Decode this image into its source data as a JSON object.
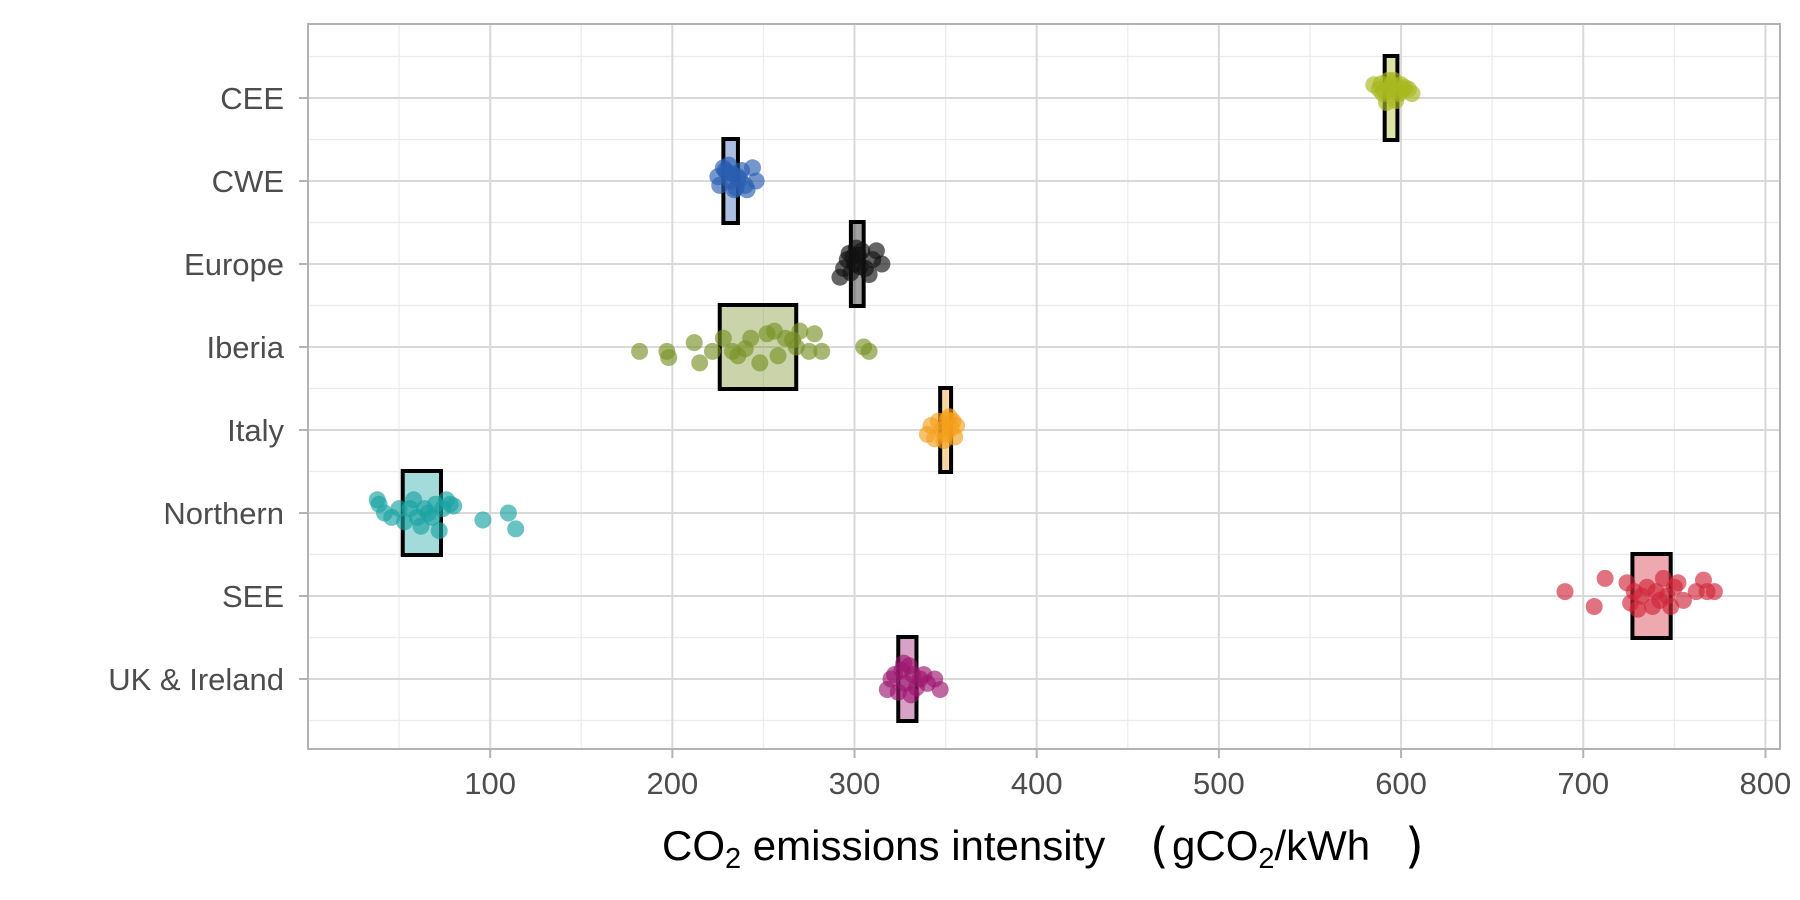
{
  "chart_data": {
    "type": "scatter",
    "subtype": "jitter points with mean boxes",
    "title": "",
    "xlabel": {
      "prefix": "CO",
      "sub1": "2",
      "middle": " emissions intensity ",
      "unit_prefix": "gCO",
      "sub2": "2",
      "unit_suffix": "/kWh",
      "open_paren": "(",
      "close_paren": ")"
    },
    "ylabel": "",
    "xlim": [
      0,
      808
    ],
    "xticks": [
      100,
      200,
      300,
      400,
      500,
      600,
      700,
      800
    ],
    "xtick_labels": [
      "100",
      "200",
      "300",
      "400",
      "500",
      "600",
      "700",
      "800"
    ],
    "categories": [
      "CEE",
      "CWE",
      "Europe",
      "Iberia",
      "Italy",
      "Northern",
      "SEE",
      "UK & Ireland"
    ],
    "grid": true,
    "legend": "none",
    "series": [
      {
        "name": "CEE",
        "color": "#a8b91f",
        "box": [
          591,
          598
        ],
        "points": [
          [
            585,
            0.15
          ],
          [
            588,
            0.1
          ],
          [
            590,
            0.05
          ],
          [
            592,
            -0.05
          ],
          [
            594,
            0.12
          ],
          [
            596,
            0.2
          ],
          [
            598,
            0.08
          ],
          [
            600,
            0.15
          ],
          [
            602,
            0.12
          ],
          [
            606,
            0.05
          ],
          [
            593,
            0.2
          ],
          [
            597,
            -0.03
          ],
          [
            599,
            0.05
          ],
          [
            601,
            0.1
          ],
          [
            595,
            0.15
          ],
          [
            589,
            0.16
          ],
          [
            604,
            0.1
          ],
          [
            591,
            0.08
          ]
        ]
      },
      {
        "name": "CWE",
        "color": "#2a5db0",
        "box": [
          228,
          236
        ],
        "points": [
          [
            225,
            0.05
          ],
          [
            228,
            0.15
          ],
          [
            230,
            0.1
          ],
          [
            232,
            0.0
          ],
          [
            234,
            -0.1
          ],
          [
            236,
            0.05
          ],
          [
            238,
            0.12
          ],
          [
            240,
            -0.05
          ],
          [
            244,
            0.15
          ],
          [
            246,
            0.0
          ],
          [
            226,
            -0.05
          ],
          [
            231,
            0.18
          ],
          [
            233,
            0.08
          ],
          [
            235,
            -0.08
          ],
          [
            229,
            0.12
          ],
          [
            241,
            -0.1
          ],
          [
            237,
            0.02
          ]
        ]
      },
      {
        "name": "Europe",
        "color": "#111111",
        "box": [
          298,
          305
        ],
        "points": [
          [
            292,
            -0.15
          ],
          [
            294,
            -0.05
          ],
          [
            296,
            0.05
          ],
          [
            298,
            -0.1
          ],
          [
            300,
            0.0
          ],
          [
            302,
            0.1
          ],
          [
            304,
            0.15
          ],
          [
            306,
            -0.05
          ],
          [
            308,
            -0.12
          ],
          [
            310,
            0.05
          ],
          [
            312,
            0.15
          ],
          [
            315,
            0.0
          ],
          [
            299,
            0.08
          ],
          [
            303,
            -0.03
          ],
          [
            297,
            0.12
          ],
          [
            301,
            0.18
          ]
        ]
      },
      {
        "name": "Iberia",
        "color": "#7a9228",
        "box": [
          226,
          268
        ],
        "points": [
          [
            182,
            -0.05
          ],
          [
            197,
            -0.05
          ],
          [
            198,
            -0.12
          ],
          [
            212,
            0.05
          ],
          [
            215,
            -0.18
          ],
          [
            222,
            -0.05
          ],
          [
            228,
            0.1
          ],
          [
            233,
            -0.05
          ],
          [
            236,
            -0.1
          ],
          [
            240,
            -0.02
          ],
          [
            243,
            0.1
          ],
          [
            248,
            -0.18
          ],
          [
            252,
            0.15
          ],
          [
            256,
            0.18
          ],
          [
            258,
            -0.1
          ],
          [
            262,
            0.1
          ],
          [
            266,
            0.08
          ],
          [
            268,
            0.0
          ],
          [
            270,
            0.18
          ],
          [
            275,
            -0.05
          ],
          [
            278,
            0.15
          ],
          [
            282,
            -0.05
          ],
          [
            305,
            0.0
          ],
          [
            308,
            -0.05
          ]
        ]
      },
      {
        "name": "Italy",
        "color": "#f5a01b",
        "box": [
          347,
          353
        ],
        "points": [
          [
            340,
            -0.05
          ],
          [
            342,
            0.05
          ],
          [
            344,
            -0.1
          ],
          [
            346,
            0.1
          ],
          [
            348,
            0.0
          ],
          [
            350,
            -0.05
          ],
          [
            352,
            0.15
          ],
          [
            354,
            0.1
          ],
          [
            356,
            0.05
          ],
          [
            355,
            -0.08
          ],
          [
            351,
            0.12
          ],
          [
            349,
            -0.12
          ],
          [
            353,
            0.02
          ]
        ]
      },
      {
        "name": "Northern",
        "color": "#1aa3a3",
        "box": [
          52,
          73
        ],
        "points": [
          [
            38,
            0.15
          ],
          [
            39,
            0.1
          ],
          [
            42,
            0.0
          ],
          [
            46,
            -0.05
          ],
          [
            50,
            0.05
          ],
          [
            53,
            -0.1
          ],
          [
            56,
            0.05
          ],
          [
            58,
            0.15
          ],
          [
            60,
            -0.05
          ],
          [
            62,
            -0.15
          ],
          [
            64,
            0.05
          ],
          [
            66,
            0.0
          ],
          [
            68,
            -0.05
          ],
          [
            70,
            0.1
          ],
          [
            72,
            -0.2
          ],
          [
            74,
            0.05
          ],
          [
            76,
            0.15
          ],
          [
            78,
            0.1
          ],
          [
            80,
            0.08
          ],
          [
            96,
            -0.08
          ],
          [
            110,
            0.0
          ],
          [
            114,
            -0.18
          ]
        ]
      },
      {
        "name": "SEE",
        "color": "#d1263a",
        "box": [
          727,
          748
        ],
        "points": [
          [
            690,
            0.05
          ],
          [
            706,
            -0.12
          ],
          [
            712,
            0.2
          ],
          [
            724,
            0.15
          ],
          [
            726,
            -0.08
          ],
          [
            728,
            0.05
          ],
          [
            730,
            -0.15
          ],
          [
            732,
            0.0
          ],
          [
            735,
            0.1
          ],
          [
            738,
            -0.12
          ],
          [
            740,
            0.05
          ],
          [
            742,
            -0.05
          ],
          [
            744,
            0.2
          ],
          [
            746,
            0.0
          ],
          [
            748,
            -0.12
          ],
          [
            750,
            0.1
          ],
          [
            752,
            0.15
          ],
          [
            755,
            -0.05
          ],
          [
            762,
            0.05
          ],
          [
            766,
            0.18
          ],
          [
            768,
            0.05
          ],
          [
            772,
            0.05
          ]
        ]
      },
      {
        "name": "UK & Ireland",
        "color": "#9c1770",
        "box": [
          324,
          334
        ],
        "points": [
          [
            318,
            -0.12
          ],
          [
            320,
            0.0
          ],
          [
            322,
            0.05
          ],
          [
            324,
            -0.15
          ],
          [
            326,
            0.1
          ],
          [
            328,
            -0.05
          ],
          [
            330,
            0.15
          ],
          [
            332,
            0.05
          ],
          [
            334,
            -0.1
          ],
          [
            336,
            0.0
          ],
          [
            338,
            0.05
          ],
          [
            340,
            -0.05
          ],
          [
            344,
            0.0
          ],
          [
            347,
            -0.12
          ],
          [
            327,
            0.18
          ],
          [
            331,
            -0.18
          ]
        ]
      }
    ]
  }
}
